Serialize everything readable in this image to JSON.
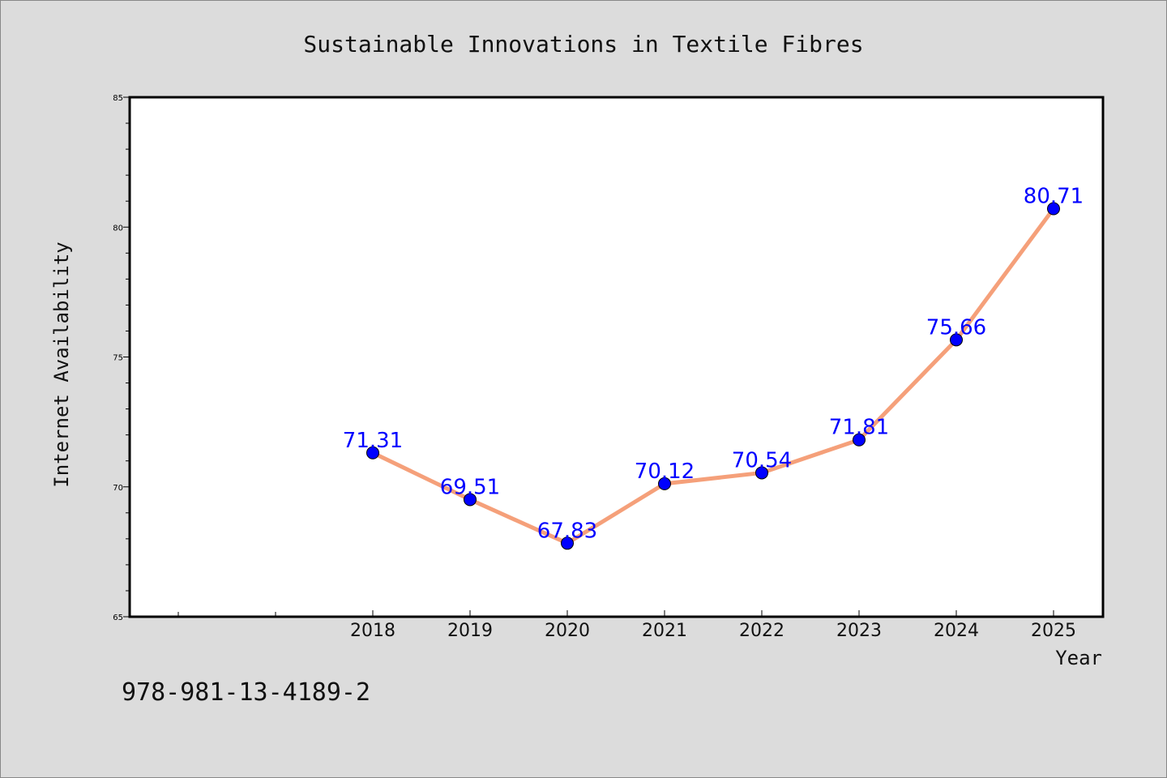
{
  "chart_data": {
    "type": "line",
    "title": "Sustainable Innovations in Textile Fibres",
    "xlabel": "Year",
    "ylabel": "Internet Availability",
    "categories": [
      "2018",
      "2019",
      "2020",
      "2021",
      "2022",
      "2023",
      "2024",
      "2025"
    ],
    "x_ticks": [
      "2018",
      "2019",
      "2020",
      "2021",
      "2022",
      "2023",
      "2024",
      "2025"
    ],
    "y_ticks": [
      "65",
      "70",
      "75",
      "80",
      "85"
    ],
    "ylim": [
      65,
      85
    ],
    "series": [
      {
        "values": [
          71.31,
          69.51,
          67.83,
          70.12,
          70.54,
          71.81,
          75.66,
          80.71
        ],
        "data_labels": [
          "71.31",
          "69.51",
          "67.83",
          "70.12",
          "70.54",
          "71.81",
          "75.66",
          "80.71"
        ]
      }
    ],
    "grid": false,
    "legend": "none",
    "colors": {
      "line": "#f5a07a",
      "marker": "#0000ff",
      "data_label": "#0000ff",
      "background": "#dcdcdc",
      "plot_background": "#ffffff"
    }
  },
  "footer": {
    "isbn": "978-981-13-4189-2"
  }
}
